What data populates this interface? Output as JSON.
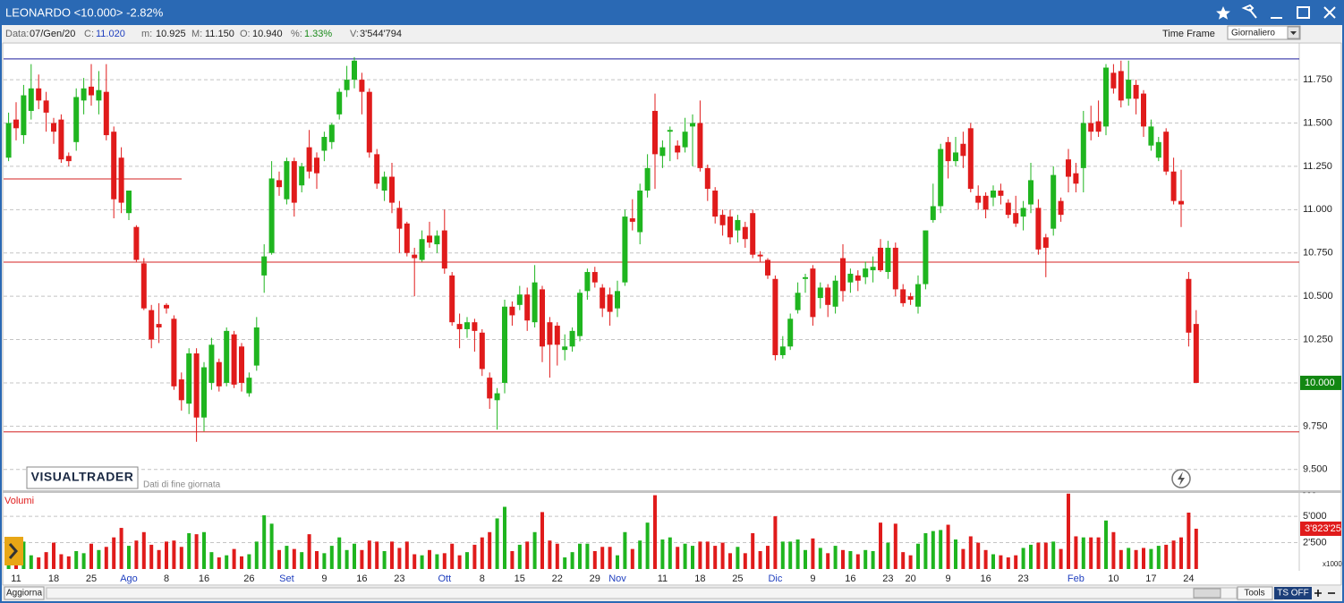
{
  "window": {
    "title": "LEONARDO <10.000> -2.82%"
  },
  "info": [
    {
      "label": "Data:",
      "value": "07/Gen/20"
    },
    {
      "label": "C:",
      "value": "11.020"
    },
    {
      "label": "m:",
      "value": "10.925"
    },
    {
      "label": "M:",
      "value": "11.150"
    },
    {
      "label": "O:",
      "value": "10.940"
    },
    {
      "label": "%:",
      "value": "1.33%"
    },
    {
      "label": "V:",
      "value": "3'544'794"
    }
  ],
  "time_frame": {
    "label": "Time Frame",
    "value": "Giornaliero"
  },
  "watermark": {
    "brand": "VISUALTRADER",
    "note": "Dati di fine giornata"
  },
  "toolbar": {
    "refresh": "Aggiorna",
    "tools": "Tools",
    "ts": "TS OFF"
  },
  "chart_data": [
    {
      "type": "candlestick",
      "categories": [
        null,
        "11",
        null,
        null,
        null,
        null,
        "18",
        null,
        null,
        null,
        null,
        "25",
        null,
        null,
        null,
        null,
        "Ago",
        null,
        null,
        null,
        null,
        "8",
        null,
        null,
        null,
        null,
        "16",
        null,
        null,
        null,
        null,
        null,
        "26",
        null,
        null,
        null,
        null,
        "Set",
        null,
        null,
        null,
        null,
        "9",
        null,
        null,
        null,
        null,
        "16",
        null,
        null,
        null,
        null,
        "23",
        null,
        null,
        null,
        null,
        null,
        "Ott",
        null,
        null,
        null,
        null,
        "8",
        null,
        null,
        null,
        null,
        "15",
        null,
        null,
        null,
        null,
        "22",
        null,
        null,
        null,
        null,
        "29",
        null,
        null,
        "Nov",
        null,
        null,
        null,
        null,
        null,
        "11",
        null,
        null,
        null,
        null,
        "18",
        null,
        null,
        null,
        null,
        "25",
        null,
        null,
        null,
        null,
        "Dic",
        null,
        null,
        null,
        null,
        "9",
        null,
        null,
        null,
        null,
        "16",
        null,
        null,
        null,
        null,
        "23",
        null,
        null,
        "20",
        null,
        null,
        null,
        null,
        "9",
        null,
        null,
        null,
        null,
        "16",
        null,
        null,
        null,
        null,
        "23",
        null,
        null,
        null,
        null,
        null,
        null,
        "Feb",
        null,
        null,
        null,
        null,
        "10",
        null,
        null,
        null,
        null,
        "17",
        null,
        null,
        null,
        null,
        "24",
        null
      ],
      "open": [
        11.3,
        11.52,
        11.43,
        11.57,
        11.7,
        11.63,
        11.5,
        11.52,
        11.31,
        11.39,
        11.63,
        11.71,
        11.63,
        11.68,
        11.45,
        11.3,
        10.98,
        10.9,
        10.69,
        10.42,
        10.34,
        10.45,
        10.37,
        10.02,
        9.88,
        10.17,
        9.8,
        10.0,
        10.12,
        10.0,
        10.28,
        10.21,
        9.94,
        10.1,
        10.62,
        10.75,
        11.17,
        11.06,
        11.28,
        11.14,
        11.36,
        11.3,
        11.34,
        11.39,
        11.55,
        11.69,
        11.75,
        11.75,
        11.68,
        11.32,
        11.11,
        11.19,
        11.01,
        10.92,
        10.74,
        10.71,
        10.85,
        10.8,
        10.88,
        10.62,
        10.34,
        10.31,
        10.35,
        10.29,
        10.03,
        9.9,
        10.0,
        10.44,
        10.45,
        10.51,
        10.35,
        10.54,
        10.35,
        10.33,
        10.19,
        10.21,
        10.27,
        10.53,
        10.64,
        10.55,
        10.51,
        10.43,
        10.58,
        10.95,
        10.87,
        11.11,
        11.57,
        11.31,
        11.45,
        11.37,
        11.36,
        11.48,
        11.5,
        11.24,
        11.11,
        10.97,
        10.96,
        10.88,
        10.9,
        10.98,
        10.74,
        10.71,
        10.6,
        10.16,
        10.21,
        10.42,
        10.6,
        10.66,
        10.49,
        10.55,
        10.44,
        10.72,
        10.58,
        10.62,
        10.61,
        10.65,
        10.78,
        10.64,
        10.78,
        10.54,
        10.5,
        10.44,
        10.57,
        10.94,
        11.02,
        11.39,
        11.28,
        11.38,
        11.47,
        11.08,
        11.08,
        11.07,
        11.11,
        11.04,
        10.98,
        10.96,
        11.03,
        11.01,
        10.84,
        10.89,
        11.05,
        11.29,
        11.21,
        11.24,
        11.5,
        11.51,
        11.48,
        11.79,
        11.8,
        11.64,
        11.72,
        11.67,
        11.37,
        11.3,
        11.45,
        11.22,
        11.05,
        10.6,
        10.34
      ],
      "high": [
        11.56,
        11.62,
        11.72,
        11.84,
        11.78,
        11.68,
        11.53,
        11.55,
        11.33,
        11.7,
        11.76,
        11.84,
        11.8,
        11.84,
        11.48,
        11.36,
        11.11,
        10.91,
        10.72,
        10.45,
        10.46,
        10.46,
        10.39,
        10.06,
        10.2,
        10.2,
        10.12,
        10.26,
        10.14,
        10.32,
        10.3,
        10.23,
        10.06,
        10.38,
        10.8,
        11.28,
        11.22,
        11.3,
        11.3,
        11.27,
        11.46,
        11.33,
        11.45,
        11.5,
        11.7,
        11.83,
        11.88,
        11.79,
        11.7,
        11.35,
        11.22,
        11.27,
        11.05,
        10.93,
        10.78,
        10.88,
        10.93,
        10.88,
        11.0,
        10.64,
        10.4,
        10.38,
        10.37,
        10.31,
        10.06,
        9.97,
        10.48,
        10.47,
        10.56,
        10.55,
        10.68,
        10.56,
        10.38,
        10.35,
        10.28,
        10.32,
        10.54,
        10.66,
        10.67,
        10.57,
        10.55,
        10.59,
        11.0,
        11.06,
        11.15,
        11.32,
        11.67,
        11.4,
        11.48,
        11.4,
        11.53,
        11.55,
        11.63,
        11.26,
        11.13,
        11.0,
        11.0,
        10.97,
        10.93,
        11.0,
        10.76,
        10.72,
        10.62,
        10.27,
        10.4,
        10.58,
        10.63,
        10.68,
        10.58,
        10.57,
        10.62,
        10.8,
        10.66,
        10.65,
        10.7,
        10.73,
        10.83,
        10.82,
        10.81,
        10.57,
        10.52,
        10.62,
        10.88,
        11.15,
        11.38,
        11.42,
        11.42,
        11.45,
        11.5,
        11.14,
        11.1,
        11.14,
        11.15,
        11.06,
        11.08,
        11.05,
        11.27,
        11.06,
        10.86,
        11.25,
        11.07,
        11.35,
        11.27,
        11.57,
        11.6,
        11.63,
        11.84,
        11.84,
        11.86,
        11.86,
        11.75,
        11.69,
        11.52,
        11.42,
        11.47,
        11.3,
        11.23,
        10.64,
        10.42
      ],
      "low": [
        11.28,
        11.4,
        11.38,
        11.52,
        11.58,
        11.45,
        11.38,
        11.27,
        11.25,
        11.34,
        11.55,
        11.6,
        11.55,
        11.4,
        10.95,
        10.98,
        10.94,
        10.7,
        10.42,
        10.2,
        10.23,
        10.4,
        9.96,
        9.84,
        9.82,
        9.66,
        9.72,
        9.96,
        9.95,
        9.98,
        9.97,
        9.95,
        9.92,
        10.07,
        10.52,
        10.74,
        11.08,
        11.03,
        10.96,
        11.1,
        11.18,
        11.12,
        11.28,
        11.35,
        11.52,
        11.65,
        11.7,
        11.55,
        11.3,
        11.12,
        11.05,
        10.98,
        10.75,
        10.73,
        10.5,
        10.7,
        10.78,
        10.75,
        10.63,
        10.33,
        10.2,
        10.26,
        10.18,
        10.04,
        9.85,
        9.73,
        9.94,
        10.33,
        10.42,
        10.3,
        10.32,
        10.12,
        10.03,
        10.1,
        10.13,
        10.18,
        10.24,
        10.48,
        10.55,
        10.38,
        10.33,
        10.38,
        10.56,
        10.88,
        10.8,
        11.07,
        11.12,
        11.24,
        11.28,
        11.29,
        11.33,
        11.25,
        11.22,
        11.05,
        10.92,
        10.85,
        10.8,
        10.81,
        10.78,
        10.72,
        10.7,
        10.6,
        10.13,
        10.14,
        10.19,
        10.4,
        10.52,
        10.33,
        10.43,
        10.38,
        10.4,
        10.47,
        10.52,
        10.53,
        10.57,
        10.58,
        10.64,
        10.6,
        10.5,
        10.44,
        10.45,
        10.4,
        10.54,
        10.925,
        10.98,
        11.18,
        11.25,
        11.24,
        11.1,
        11.0,
        10.95,
        11.02,
        11.03,
        10.95,
        10.9,
        10.88,
        10.98,
        10.74,
        10.61,
        10.85,
        10.93,
        11.1,
        11.1,
        11.1,
        11.4,
        11.42,
        11.43,
        11.67,
        11.59,
        11.6,
        11.55,
        11.42,
        11.34,
        11.28,
        11.2,
        11.03,
        10.9,
        10.21,
        10.0
      ],
      "close": [
        11.5,
        11.47,
        11.66,
        11.7,
        11.63,
        11.56,
        11.45,
        11.29,
        11.28,
        11.65,
        11.7,
        11.66,
        11.69,
        11.43,
        11.06,
        11.04,
        11.11,
        10.71,
        10.43,
        10.25,
        10.32,
        10.43,
        9.98,
        9.9,
        10.17,
        9.8,
        10.09,
        10.22,
        9.98,
        10.3,
        9.99,
        10.0,
        10.03,
        10.32,
        10.73,
        11.18,
        11.13,
        11.28,
        11.04,
        11.25,
        11.22,
        11.21,
        11.42,
        11.49,
        11.68,
        11.75,
        11.86,
        11.68,
        11.33,
        11.15,
        11.19,
        11.04,
        10.89,
        10.75,
        10.72,
        10.83,
        10.81,
        10.85,
        10.66,
        10.35,
        10.31,
        10.35,
        10.3,
        10.08,
        9.91,
        9.94,
        10.44,
        10.39,
        10.51,
        10.36,
        10.58,
        10.21,
        10.22,
        10.22,
        10.21,
        10.3,
        10.52,
        10.64,
        10.58,
        10.43,
        10.41,
        10.53,
        10.96,
        10.93,
        11.11,
        11.24,
        11.32,
        11.36,
        11.46,
        11.33,
        11.45,
        11.5,
        11.24,
        11.12,
        10.96,
        10.91,
        10.84,
        10.94,
        10.83,
        10.74,
        10.73,
        10.62,
        10.16,
        10.21,
        10.37,
        10.52,
        10.61,
        10.38,
        10.55,
        10.45,
        10.59,
        10.53,
        10.63,
        10.59,
        10.66,
        10.67,
        10.65,
        10.78,
        10.54,
        10.46,
        10.48,
        10.57,
        10.88,
        11.02,
        11.35,
        11.28,
        11.33,
        11.31,
        11.12,
        11.04,
        11.0,
        11.11,
        11.08,
        10.97,
        10.92,
        11.01,
        11.17,
        10.77,
        10.78,
        11.2,
        10.97,
        11.19,
        11.15,
        11.5,
        11.45,
        11.45,
        11.82,
        11.7,
        11.63,
        11.75,
        11.64,
        11.48,
        11.48,
        11.39,
        11.22,
        11.05,
        11.03,
        10.29,
        10.0
      ],
      "up_color": "#1fb51f",
      "down_color": "#e01b1b",
      "ylim": [
        9.38,
        11.89
      ],
      "yticks": [
        {
          "value": 9.5,
          "label": "9.500"
        },
        {
          "value": 9.75,
          "label": "9.750"
        },
        {
          "value": 10,
          "label": "10.000"
        },
        {
          "value": 10.25,
          "label": "10.250"
        },
        {
          "value": 10.5,
          "label": "10.500"
        },
        {
          "value": 10.75,
          "label": "10.750"
        },
        {
          "value": 11,
          "label": "11.000"
        },
        {
          "value": 11.25,
          "label": "11.250"
        },
        {
          "value": 11.5,
          "label": "11.500"
        },
        {
          "value": 11.75,
          "label": "11.750"
        }
      ],
      "grid": true,
      "hlines": [
        {
          "value": 11.87,
          "color": "#1a1a9e",
          "span": "full"
        },
        {
          "value": 11.177,
          "color": "#d42020",
          "span": "partial"
        },
        {
          "value": 10.697,
          "color": "#d42020",
          "span": "full"
        },
        {
          "value": 9.717,
          "color": "#d42020",
          "span": "full"
        }
      ],
      "last_label": {
        "value": 10.0,
        "label": "10.000",
        "color": "#128712"
      },
      "month_color": "#1f3fbf"
    },
    {
      "type": "bar",
      "title": "Volumi",
      "unit_label": "x1000",
      "values": [
        2400,
        1700,
        2600,
        1300,
        1100,
        1600,
        2500,
        1400,
        1200,
        1700,
        1500,
        2400,
        1800,
        2100,
        3000,
        3900,
        2200,
        2700,
        3500,
        2300,
        1800,
        2600,
        2700,
        2100,
        3400,
        3300,
        3500,
        1600,
        1100,
        1300,
        1900,
        1200,
        1400,
        2600,
        5100,
        4300,
        1800,
        2200,
        1900,
        1600,
        3300,
        1700,
        1500,
        2200,
        3000,
        1800,
        2400,
        1800,
        2700,
        2600,
        1700,
        2600,
        2000,
        2600,
        1400,
        1300,
        1800,
        1400,
        1500,
        2400,
        1300,
        1600,
        2300,
        3000,
        3500,
        4800,
        5900,
        1700,
        2300,
        2600,
        3500,
        5400,
        2700,
        2400,
        1100,
        1600,
        2400,
        2400,
        1700,
        2100,
        2100,
        1300,
        3500,
        1900,
        2700,
        4400,
        7000,
        2800,
        3000,
        2100,
        2400,
        2200,
        2600,
        2600,
        2200,
        2500,
        1500,
        2100,
        1500,
        3400,
        1700,
        2200,
        5000,
        2600,
        2600,
        2800,
        1800,
        2900,
        2000,
        1500,
        2200,
        1800,
        1700,
        1400,
        1800,
        1700,
        4400,
        2500,
        4300,
        1600,
        1300,
        2400,
        3400,
        3600,
        3700,
        4200,
        2800,
        1900,
        3100,
        2500,
        1800,
        1400,
        1300,
        1100,
        1300,
        2000,
        2300,
        2500,
        2500,
        2600,
        1900,
        7150,
        3100,
        3000,
        3000,
        3000,
        4600,
        3500,
        1800,
        2000,
        1800,
        2000,
        1900,
        2200,
        2300,
        2700,
        3000,
        5350,
        3823.25
      ],
      "ylim": [
        0,
        7300
      ],
      "yticks": [
        {
          "value": 2500,
          "label": "2'500"
        },
        {
          "value": 5000,
          "label": "5'000"
        }
      ],
      "grid": true,
      "last_label": {
        "value": 3823.25,
        "label": "3'823'25",
        "color": "#e01b1b"
      }
    }
  ]
}
